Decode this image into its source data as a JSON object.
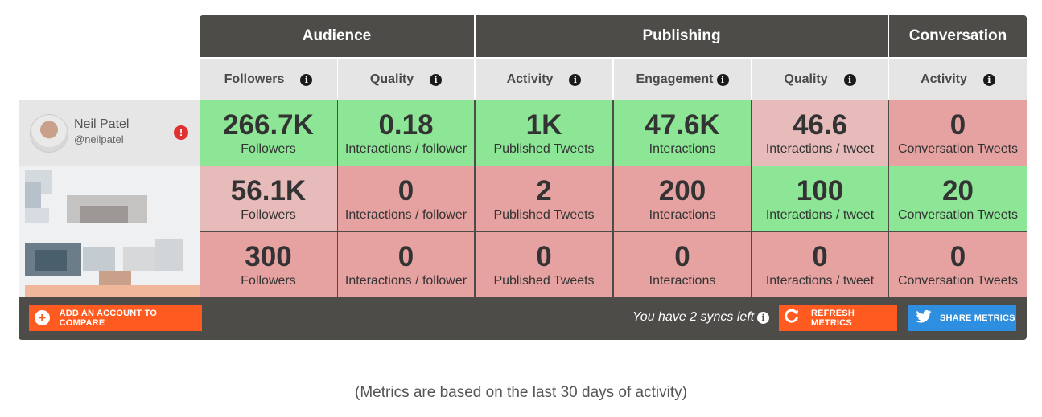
{
  "groups": {
    "audience": "Audience",
    "publishing": "Publishing",
    "conversation": "Conversation"
  },
  "columns": [
    {
      "label": "Followers"
    },
    {
      "label": "Quality"
    },
    {
      "label": "Activity"
    },
    {
      "label": "Engagement"
    },
    {
      "label": "Quality"
    },
    {
      "label": "Activity"
    }
  ],
  "info_glyph": "i",
  "account": {
    "name": "Neil Patel",
    "handle": "@neilpatel",
    "warning_glyph": "!"
  },
  "rows": [
    [
      {
        "value": "266.7K",
        "label": "Followers",
        "status": "good"
      },
      {
        "value": "0.18",
        "label": "Interactions / follower",
        "status": "good"
      },
      {
        "value": "1K",
        "label": "Published Tweets",
        "status": "good"
      },
      {
        "value": "47.6K",
        "label": "Interactions",
        "status": "good"
      },
      {
        "value": "46.6",
        "label": "Interactions / tweet",
        "status": "medium"
      },
      {
        "value": "0",
        "label": "Conversation Tweets",
        "status": "bad"
      }
    ],
    [
      {
        "value": "56.1K",
        "label": "Followers",
        "status": "medium"
      },
      {
        "value": "0",
        "label": "Interactions / follower",
        "status": "bad"
      },
      {
        "value": "2",
        "label": "Published Tweets",
        "status": "bad"
      },
      {
        "value": "200",
        "label": "Interactions",
        "status": "bad"
      },
      {
        "value": "100",
        "label": "Interactions / tweet",
        "status": "good"
      },
      {
        "value": "20",
        "label": "Conversation Tweets",
        "status": "good"
      }
    ],
    [
      {
        "value": "300",
        "label": "Followers",
        "status": "bad"
      },
      {
        "value": "0",
        "label": "Interactions / follower",
        "status": "bad"
      },
      {
        "value": "0",
        "label": "Published Tweets",
        "status": "bad"
      },
      {
        "value": "0",
        "label": "Interactions",
        "status": "bad"
      },
      {
        "value": "0",
        "label": "Interactions / tweet",
        "status": "bad"
      },
      {
        "value": "0",
        "label": "Conversation Tweets",
        "status": "bad"
      }
    ]
  ],
  "toolbar": {
    "add_label": "ADD AN ACCOUNT TO COMPARE",
    "syncs_text": "You have 2 syncs left",
    "refresh_label": "REFRESH METRICS",
    "share_label": "SHARE METRICS",
    "plus_glyph": "+"
  },
  "colors": {
    "good": "#8de596",
    "medium": "#e8bbbb",
    "bad": "#e6a2a1",
    "header": "#4d4c48",
    "accent_orange": "#ff5a1f",
    "accent_blue": "#2e8fe0"
  },
  "footnote": "(Metrics are based on the last 30 days of activity)"
}
